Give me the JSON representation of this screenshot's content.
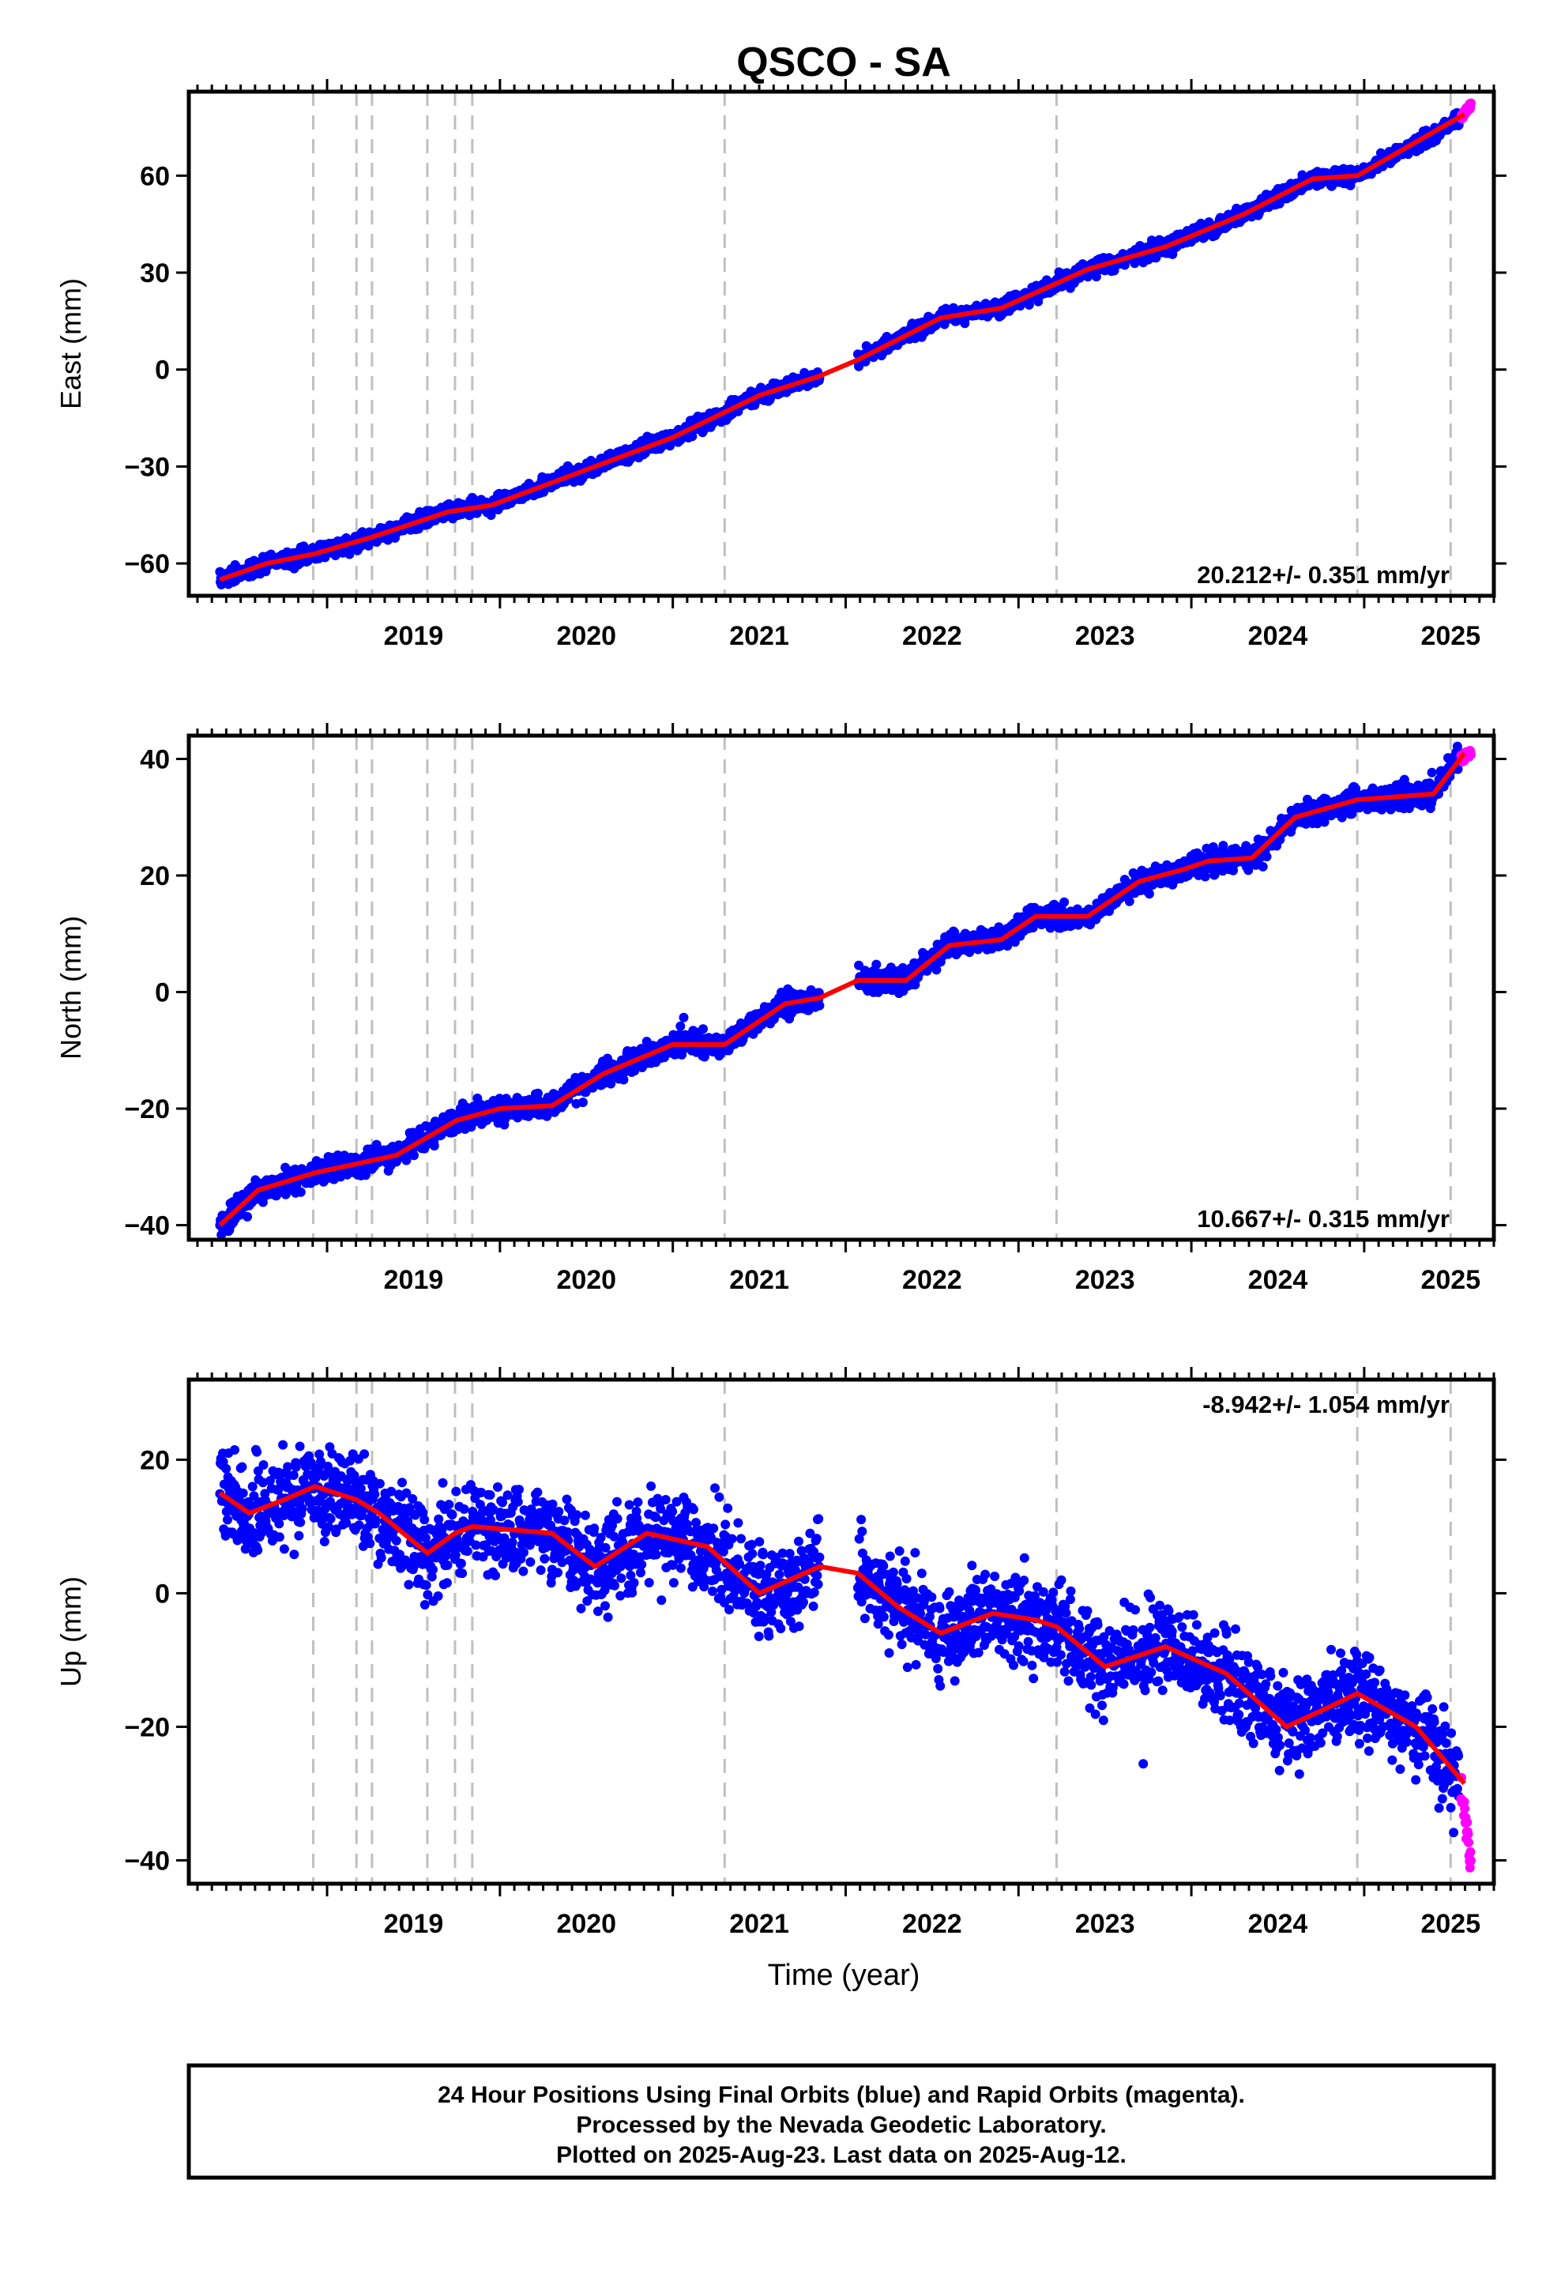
{
  "title": "QSCO - SA",
  "xlabel": "Time (year)",
  "footer": [
    "24 Hour Positions Using Final Orbits (blue) and Rapid Orbits (magenta).",
    "Processed by the Nevada Geodetic Laboratory.",
    "Plotted on 2025-Aug-23. Last data on 2025-Aug-12."
  ],
  "colors": {
    "final_orbits": "#0000ff",
    "rapid_orbits": "#ff00ff",
    "model_fit": "#ff0000",
    "equipment_change_lines": "#c0c0c0"
  },
  "chart_data": [
    {
      "type": "scatter",
      "panel": "east",
      "ylabel": "East (mm)",
      "xlim": [
        2018.2,
        2025.75
      ],
      "ylim": [
        -70,
        86
      ],
      "yticks": [
        -60,
        -30,
        0,
        30,
        60
      ],
      "xticks": [
        2019,
        2020,
        2021,
        2022,
        2023,
        2024,
        2025
      ],
      "x_tick_labels": [
        "2019",
        "2020",
        "2021",
        "2022",
        "2023",
        "2024",
        "2025"
      ],
      "y_tick_labels": [
        "−60",
        "−30",
        "0",
        "30",
        "60"
      ],
      "rate_label": "20.212+/- 0.351 mm/yr",
      "rate_position": "bottom-right",
      "grid": false,
      "dashed_lines_x": [
        2018.92,
        2019.17,
        2019.26,
        2019.58,
        2019.74,
        2019.84,
        2021.3,
        2023.22,
        2024.96,
        2025.5
      ],
      "data_gap": [
        2021.85,
        2022.07
      ],
      "noise_sd": 1.2,
      "series": [
        {
          "role": "final_orbits",
          "x_range": [
            2018.38,
            2025.55
          ],
          "values": [
            [
              2018.38,
              -65
            ],
            [
              2018.65,
              -60
            ],
            [
              2018.93,
              -57
            ],
            [
              2019.25,
              -52
            ],
            [
              2019.7,
              -44
            ],
            [
              2019.95,
              -42
            ],
            [
              2020.5,
              -31
            ],
            [
              2021.0,
              -21
            ],
            [
              2021.5,
              -8
            ],
            [
              2021.85,
              -2
            ],
            [
              2022.07,
              3
            ],
            [
              2022.55,
              16
            ],
            [
              2022.9,
              19
            ],
            [
              2023.4,
              31
            ],
            [
              2023.85,
              38
            ],
            [
              2024.3,
              48
            ],
            [
              2024.7,
              59
            ],
            [
              2024.96,
              60
            ],
            [
              2025.55,
              77
            ]
          ]
        },
        {
          "role": "rapid_orbits",
          "x_range": [
            2025.56,
            2025.62
          ],
          "values": [
            [
              2025.56,
              78
            ],
            [
              2025.62,
              82
            ]
          ]
        }
      ],
      "fit": [
        [
          2018.38,
          -65
        ],
        [
          2018.65,
          -60
        ],
        [
          2018.93,
          -57
        ],
        [
          2019.25,
          -52
        ],
        [
          2019.7,
          -44
        ],
        [
          2019.95,
          -42
        ],
        [
          2020.5,
          -31
        ],
        [
          2021.0,
          -21
        ],
        [
          2021.5,
          -8
        ],
        [
          2021.85,
          -2
        ],
        [
          2022.07,
          3
        ],
        [
          2022.55,
          16
        ],
        [
          2022.9,
          19
        ],
        [
          2023.4,
          31
        ],
        [
          2023.85,
          38
        ],
        [
          2024.3,
          48
        ],
        [
          2024.7,
          59
        ],
        [
          2024.96,
          60
        ],
        [
          2025.58,
          79
        ]
      ]
    },
    {
      "type": "scatter",
      "panel": "north",
      "ylabel": "North (mm)",
      "xlim": [
        2018.2,
        2025.75
      ],
      "ylim": [
        -42.5,
        44
      ],
      "yticks": [
        -40,
        -20,
        0,
        20,
        40
      ],
      "xticks": [
        2019,
        2020,
        2021,
        2022,
        2023,
        2024,
        2025
      ],
      "x_tick_labels": [
        "2019",
        "2020",
        "2021",
        "2022",
        "2023",
        "2024",
        "2025"
      ],
      "y_tick_labels": [
        "−40",
        "−20",
        "0",
        "20",
        "40"
      ],
      "rate_label": "10.667+/- 0.315 mm/yr",
      "rate_position": "bottom-right",
      "grid": false,
      "dashed_lines_x": [
        2018.92,
        2019.17,
        2019.26,
        2019.58,
        2019.74,
        2019.84,
        2021.3,
        2023.22,
        2024.96,
        2025.5
      ],
      "data_gap": [
        2021.85,
        2022.07
      ],
      "noise_sd": 1.0,
      "series": [
        {
          "role": "final_orbits",
          "x_range": [
            2018.38,
            2025.55
          ],
          "values": [
            [
              2018.38,
              -40
            ],
            [
              2018.6,
              -34
            ],
            [
              2018.93,
              -31
            ],
            [
              2019.4,
              -28
            ],
            [
              2019.75,
              -22
            ],
            [
              2020.0,
              -20
            ],
            [
              2020.3,
              -19.5
            ],
            [
              2020.6,
              -14
            ],
            [
              2021.0,
              -9
            ],
            [
              2021.3,
              -9
            ],
            [
              2021.65,
              -2
            ],
            [
              2021.85,
              -1
            ],
            [
              2022.07,
              2
            ],
            [
              2022.35,
              2
            ],
            [
              2022.6,
              8
            ],
            [
              2022.9,
              9
            ],
            [
              2023.1,
              13
            ],
            [
              2023.4,
              13
            ],
            [
              2023.7,
              19
            ],
            [
              2023.95,
              21
            ],
            [
              2024.1,
              22.5
            ],
            [
              2024.35,
              23
            ],
            [
              2024.6,
              30
            ],
            [
              2024.96,
              33
            ],
            [
              2025.4,
              34
            ],
            [
              2025.55,
              41
            ]
          ]
        },
        {
          "role": "rapid_orbits",
          "x_range": [
            2025.56,
            2025.62
          ],
          "values": [
            [
              2025.56,
              40
            ],
            [
              2025.62,
              41
            ]
          ]
        }
      ],
      "fit": [
        [
          2018.38,
          -40
        ],
        [
          2018.6,
          -34
        ],
        [
          2018.93,
          -31
        ],
        [
          2019.4,
          -28
        ],
        [
          2019.75,
          -22
        ],
        [
          2020.0,
          -20
        ],
        [
          2020.3,
          -19.5
        ],
        [
          2020.6,
          -14
        ],
        [
          2021.0,
          -9
        ],
        [
          2021.3,
          -9
        ],
        [
          2021.65,
          -2
        ],
        [
          2021.85,
          -1
        ],
        [
          2022.07,
          2
        ],
        [
          2022.35,
          2
        ],
        [
          2022.6,
          8
        ],
        [
          2022.9,
          9
        ],
        [
          2023.1,
          13
        ],
        [
          2023.4,
          13
        ],
        [
          2023.7,
          19
        ],
        [
          2023.95,
          21
        ],
        [
          2024.1,
          22.5
        ],
        [
          2024.35,
          23
        ],
        [
          2024.6,
          30
        ],
        [
          2024.96,
          33
        ],
        [
          2025.4,
          34
        ],
        [
          2025.58,
          41
        ]
      ]
    },
    {
      "type": "scatter",
      "panel": "up",
      "ylabel": "Up (mm)",
      "xlim": [
        2018.2,
        2025.75
      ],
      "ylim": [
        -43.5,
        32
      ],
      "yticks": [
        -40,
        -20,
        0,
        20
      ],
      "xticks": [
        2019,
        2020,
        2021,
        2022,
        2023,
        2024,
        2025
      ],
      "x_tick_labels": [
        "2019",
        "2020",
        "2021",
        "2022",
        "2023",
        "2024",
        "2025"
      ],
      "y_tick_labels": [
        "−40",
        "−20",
        "0",
        "20"
      ],
      "rate_label": "-8.942+/- 1.054 mm/yr",
      "rate_position": "top-right",
      "grid": false,
      "dashed_lines_x": [
        2018.92,
        2019.17,
        2019.26,
        2019.58,
        2019.74,
        2019.84,
        2021.3,
        2023.22,
        2024.96,
        2025.5
      ],
      "data_gap": [
        2021.85,
        2022.07
      ],
      "noise_sd": 3.3,
      "series": [
        {
          "role": "final_orbits",
          "x_range": [
            2018.38,
            2025.55
          ],
          "values": [
            [
              2018.38,
              15
            ],
            [
              2018.55,
              12
            ],
            [
              2018.75,
              14
            ],
            [
              2018.93,
              16
            ],
            [
              2019.17,
              14
            ],
            [
              2019.3,
              12
            ],
            [
              2019.58,
              6
            ],
            [
              2019.74,
              9
            ],
            [
              2019.84,
              10
            ],
            [
              2020.3,
              9
            ],
            [
              2020.55,
              4
            ],
            [
              2020.85,
              9
            ],
            [
              2021.2,
              7
            ],
            [
              2021.5,
              0
            ],
            [
              2021.85,
              4
            ],
            [
              2022.07,
              3
            ],
            [
              2022.3,
              -2
            ],
            [
              2022.55,
              -6
            ],
            [
              2022.85,
              -3
            ],
            [
              2023.1,
              -4
            ],
            [
              2023.22,
              -5
            ],
            [
              2023.5,
              -11
            ],
            [
              2023.85,
              -8
            ],
            [
              2024.2,
              -12
            ],
            [
              2024.55,
              -20
            ],
            [
              2024.8,
              -17
            ],
            [
              2024.96,
              -15
            ],
            [
              2025.3,
              -20
            ],
            [
              2025.55,
              -28
            ]
          ]
        },
        {
          "role": "rapid_orbits",
          "x_range": [
            2025.56,
            2025.62
          ],
          "values": [
            [
              2025.56,
              -28.5
            ],
            [
              2025.62,
              -41
            ]
          ]
        }
      ],
      "fit": [
        [
          2018.38,
          15
        ],
        [
          2018.55,
          12
        ],
        [
          2018.75,
          14
        ],
        [
          2018.93,
          16
        ],
        [
          2019.17,
          14
        ],
        [
          2019.3,
          12
        ],
        [
          2019.58,
          6
        ],
        [
          2019.74,
          9
        ],
        [
          2019.84,
          10
        ],
        [
          2020.3,
          9
        ],
        [
          2020.55,
          4
        ],
        [
          2020.85,
          9
        ],
        [
          2021.2,
          7
        ],
        [
          2021.5,
          0
        ],
        [
          2021.85,
          4
        ],
        [
          2022.07,
          3
        ],
        [
          2022.3,
          -2
        ],
        [
          2022.55,
          -6
        ],
        [
          2022.85,
          -3
        ],
        [
          2023.1,
          -4
        ],
        [
          2023.22,
          -5
        ],
        [
          2023.5,
          -11
        ],
        [
          2023.85,
          -8
        ],
        [
          2024.2,
          -12
        ],
        [
          2024.55,
          -20
        ],
        [
          2024.8,
          -17
        ],
        [
          2024.96,
          -15
        ],
        [
          2025.3,
          -20
        ],
        [
          2025.58,
          -28.5
        ]
      ]
    }
  ]
}
